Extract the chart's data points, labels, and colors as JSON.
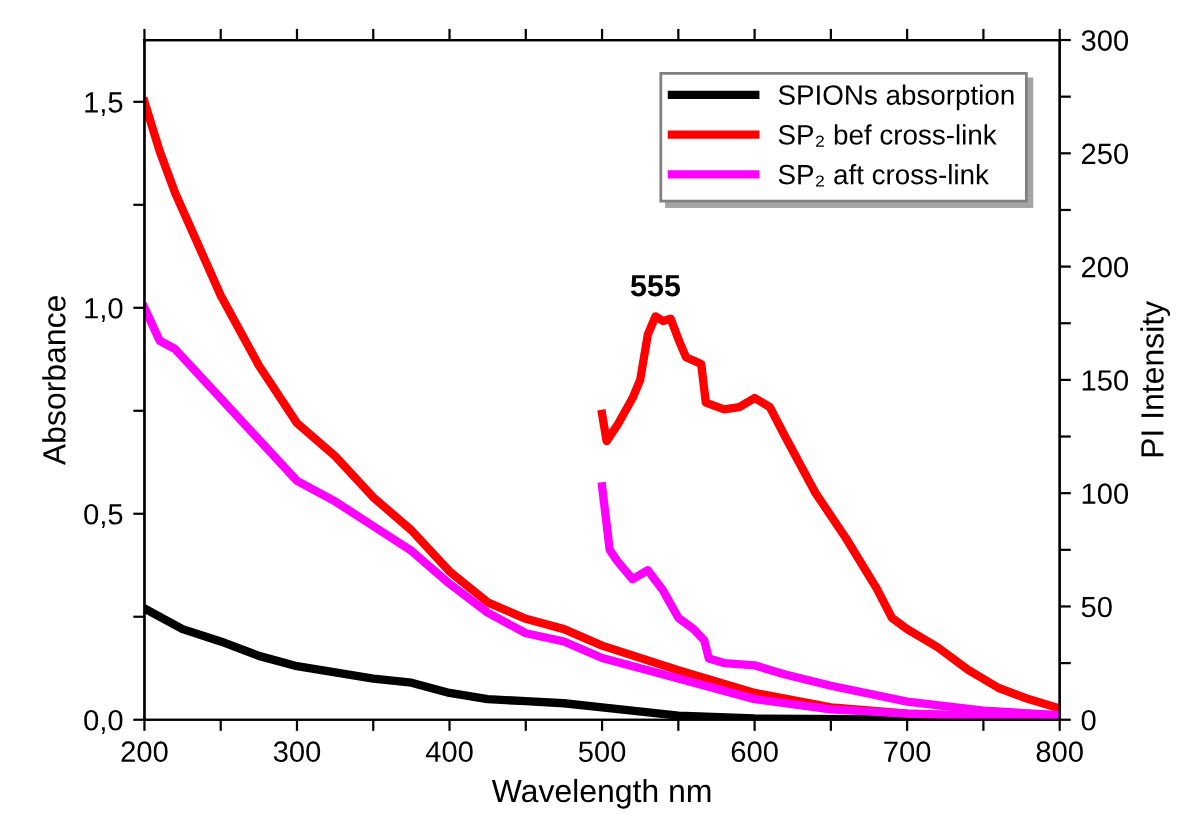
{
  "chart_data": {
    "type": "line",
    "xlabel": "Wavelength nm",
    "ylabel": "Absorbance",
    "y2label": "PI Intensity",
    "xlim": [
      200,
      800
    ],
    "xticks": [
      200,
      {
        "value": 250,
        "label": null
      },
      300,
      {
        "value": 350,
        "label": null
      },
      400,
      {
        "value": 450,
        "label": null
      },
      500,
      {
        "value": 550,
        "label": null
      },
      600,
      {
        "value": 650,
        "label": null
      },
      700,
      {
        "value": 750,
        "label": null
      },
      800
    ],
    "ylim": [
      0,
      1.65
    ],
    "yticks": [
      {
        "value": 0,
        "label": "0,0"
      },
      {
        "value": 0.25,
        "label": null
      },
      {
        "value": 0.5,
        "label": "0,5"
      },
      {
        "value": 0.75,
        "label": null
      },
      {
        "value": 1.0,
        "label": "1,0"
      },
      {
        "value": 1.25,
        "label": null
      },
      {
        "value": 1.5,
        "label": "1,5"
      }
    ],
    "y2lim": [
      0,
      300
    ],
    "y2ticks": [
      0,
      {
        "value": 25,
        "label": null
      },
      50,
      {
        "value": 75,
        "label": null
      },
      100,
      {
        "value": 125,
        "label": null
      },
      150,
      {
        "value": 175,
        "label": null
      },
      200,
      {
        "value": 225,
        "label": null
      },
      250,
      {
        "value": 275,
        "label": null
      },
      300
    ],
    "legend": "top right",
    "grid": false,
    "annotations": [
      "555"
    ],
    "series": [
      {
        "name": "SPIONs absorption",
        "color": "#000000",
        "x": [
          200,
          225,
          250,
          275,
          300,
          325,
          350,
          375,
          400,
          425,
          450,
          475,
          500,
          550,
          600,
          700,
          800
        ],
        "values": [
          0.27,
          0.22,
          0.19,
          0.155,
          0.13,
          0.115,
          0.1,
          0.09,
          0.065,
          0.05,
          0.045,
          0.04,
          0.03,
          0.01,
          0.003,
          0.001,
          0
        ]
      },
      {
        "name": "SP₂ bef cross-link",
        "color": "#ff0000",
        "x": [
          200,
          210,
          220,
          250,
          275,
          300,
          325,
          350,
          375,
          400,
          425,
          450,
          475,
          500,
          550,
          600,
          650,
          700,
          750,
          800
        ],
        "values": [
          1.5,
          1.38,
          1.28,
          1.03,
          0.86,
          0.72,
          0.64,
          0.54,
          0.46,
          0.36,
          0.285,
          0.245,
          0.22,
          0.18,
          0.12,
          0.065,
          0.03,
          0.015,
          0.008,
          0.005
        ]
      },
      {
        "name": "SP₂ aft cross-link",
        "color": "#ff00ff",
        "x": [
          200,
          210,
          220,
          250,
          275,
          300,
          325,
          350,
          375,
          400,
          425,
          450,
          475,
          500,
          550,
          600,
          650,
          700,
          750,
          800
        ],
        "values": [
          1.0,
          0.92,
          0.9,
          0.78,
          0.68,
          0.58,
          0.53,
          0.47,
          0.41,
          0.33,
          0.26,
          0.21,
          0.19,
          0.15,
          0.1,
          0.05,
          0.025,
          0.015,
          0.01,
          0.008
        ]
      },
      {
        "color": "#ff0000",
        "axis": "y2",
        "x": [
          500,
          503,
          510,
          520,
          525,
          530,
          535,
          540,
          545,
          550,
          555,
          565,
          568,
          580,
          590,
          600,
          610,
          620,
          640,
          660,
          680,
          690,
          700,
          720,
          740,
          760,
          780,
          800
        ],
        "values": [
          135,
          123,
          130,
          142,
          150,
          170,
          178,
          176,
          177,
          168,
          160,
          157,
          140,
          137,
          138,
          142,
          138,
          125,
          100,
          80,
          58,
          45,
          40,
          32,
          22,
          14,
          9,
          5
        ]
      },
      {
        "color": "#ff00ff",
        "axis": "y2",
        "x": [
          500,
          505,
          510,
          520,
          530,
          540,
          550,
          560,
          567,
          570,
          580,
          600,
          610,
          620,
          650,
          700,
          750,
          800
        ],
        "values": [
          103,
          75,
          70,
          62,
          66,
          57,
          45,
          40,
          35,
          27,
          25,
          24,
          22,
          20,
          15,
          8,
          4,
          2
        ]
      }
    ]
  }
}
